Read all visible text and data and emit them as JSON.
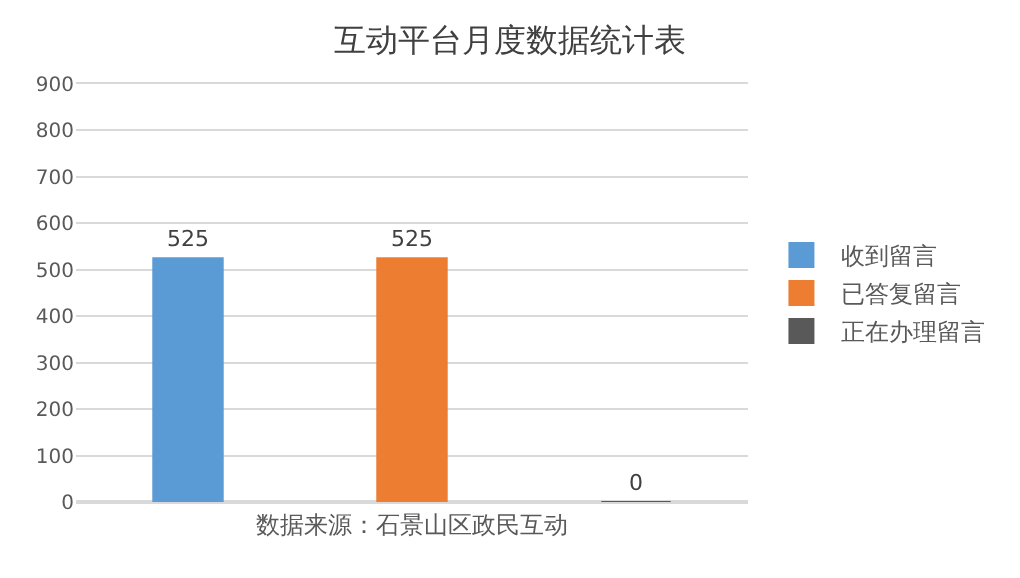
{
  "chart_data": {
    "type": "bar",
    "title": "互动平台月度数据统计表",
    "categories": [
      "数据来源：石景山区政民互动"
    ],
    "series": [
      {
        "name": "收到留言",
        "color": "#5b9bd5",
        "values": [
          525
        ]
      },
      {
        "name": "已答复留言",
        "color": "#ed7d31",
        "values": [
          525
        ]
      },
      {
        "name": "正在办理留言",
        "color": "#595959",
        "values": [
          0
        ]
      }
    ],
    "ylim": [
      0,
      900
    ],
    "yticks": [
      0,
      100,
      200,
      300,
      400,
      500,
      600,
      700,
      800,
      900
    ],
    "grid": "y",
    "legend": "right",
    "data_labels": true
  }
}
